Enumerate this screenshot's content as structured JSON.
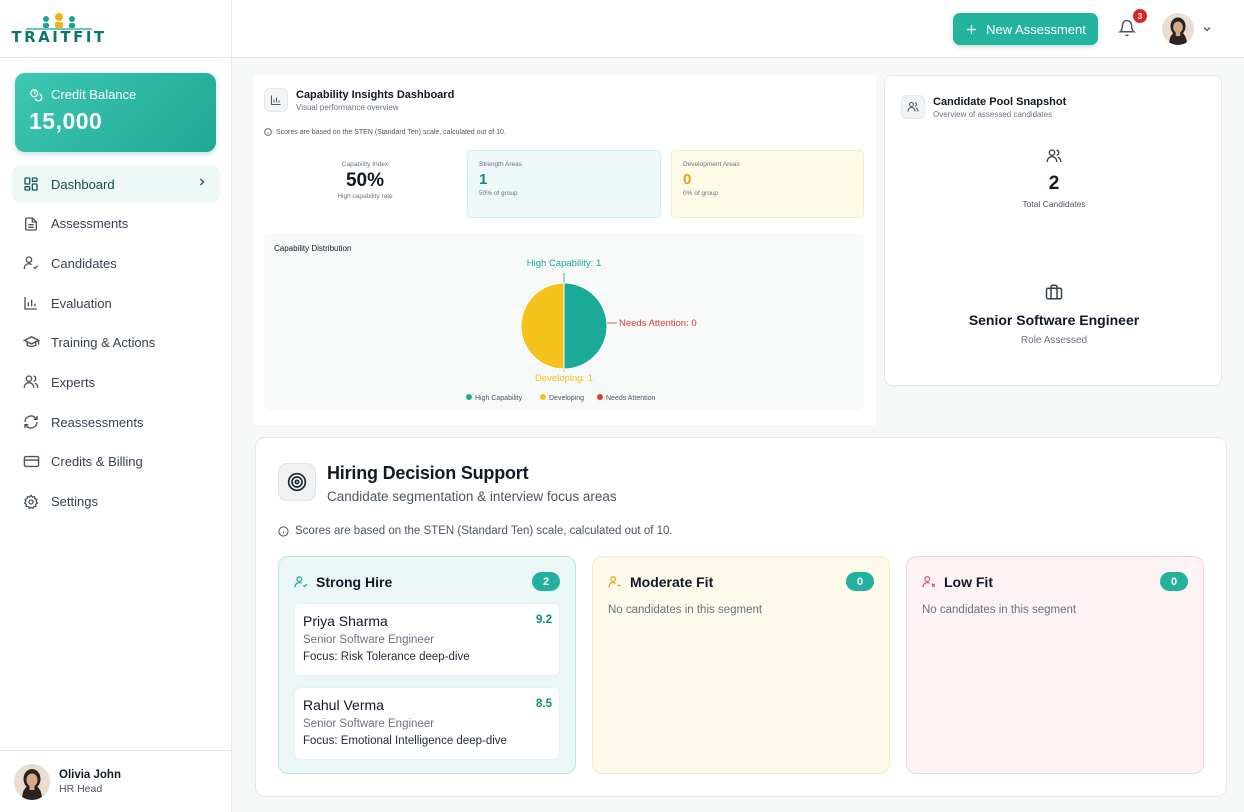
{
  "brand": {
    "name": "TRAITFIT"
  },
  "credit": {
    "title": "Credit Balance",
    "value": "15,000"
  },
  "nav": [
    {
      "label": "Dashboard",
      "icon": "grid-icon",
      "active": true
    },
    {
      "label": "Assessments",
      "icon": "document-icon"
    },
    {
      "label": "Candidates",
      "icon": "user-check-icon"
    },
    {
      "label": "Evaluation",
      "icon": "bar-chart-icon"
    },
    {
      "label": "Training & Actions",
      "icon": "graduation-cap-icon"
    },
    {
      "label": "Experts",
      "icon": "users-icon"
    },
    {
      "label": "Reassessments",
      "icon": "refresh-icon"
    },
    {
      "label": "Credits & Billing",
      "icon": "credit-card-icon"
    },
    {
      "label": "Settings",
      "icon": "gear-icon"
    }
  ],
  "user": {
    "name": "Olivia John",
    "role": "HR Head"
  },
  "topbar": {
    "new_assessment": "New Assessment",
    "notification_count": "3"
  },
  "insights": {
    "title": "Capability Insights Dashboard",
    "subtitle": "Visual performance overview",
    "note": "Scores are based on the STEN (Standard Ten) scale, calculated out of 10.",
    "capability_index": {
      "label": "Capability Index",
      "value": "50%",
      "caption": "High capability rate"
    },
    "strength": {
      "label": "Strength Areas",
      "value": "1",
      "caption": "50% of group"
    },
    "development": {
      "label": "Development Areas",
      "value": "0",
      "caption": "0% of group"
    }
  },
  "chart_data": {
    "type": "pie",
    "title": "Capability Distribution",
    "categories": [
      "High Capability",
      "Developing",
      "Needs Attention"
    ],
    "values": [
      1,
      1,
      0
    ],
    "slice_labels": [
      "High Capability: 1",
      "Developing: 1",
      "Needs Attention: 0"
    ],
    "colors": [
      "#1aaa96",
      "#f4c21a",
      "#e23b3b"
    ],
    "legend": "bottom"
  },
  "pool": {
    "title": "Candidate Pool Snapshot",
    "subtitle": "Overview of assessed candidates",
    "total_value": "2",
    "total_label": "Total Candidates",
    "role": "Senior Software Engineer",
    "role_label": "Role Assessed"
  },
  "hiring": {
    "title": "Hiring Decision Support",
    "subtitle": "Candidate segmentation & interview focus areas",
    "note": "Scores are based on the STEN (Standard Ten) scale, calculated out of 10.",
    "segments": {
      "strong": {
        "label": "Strong Hire",
        "count": "2",
        "candidates": [
          {
            "name": "Priya Sharma",
            "role": "Senior Software Engineer",
            "focus": "Focus: Risk Tolerance deep-dive",
            "score": "9.2"
          },
          {
            "name": "Rahul Verma",
            "role": "Senior Software Engineer",
            "focus": "Focus: Emotional Intelligence deep-dive",
            "score": "8.5"
          }
        ]
      },
      "moderate": {
        "label": "Moderate Fit",
        "count": "0",
        "empty": "No candidates in this segment"
      },
      "low": {
        "label": "Low Fit",
        "count": "0",
        "empty": "No candidates in this segment"
      }
    }
  }
}
